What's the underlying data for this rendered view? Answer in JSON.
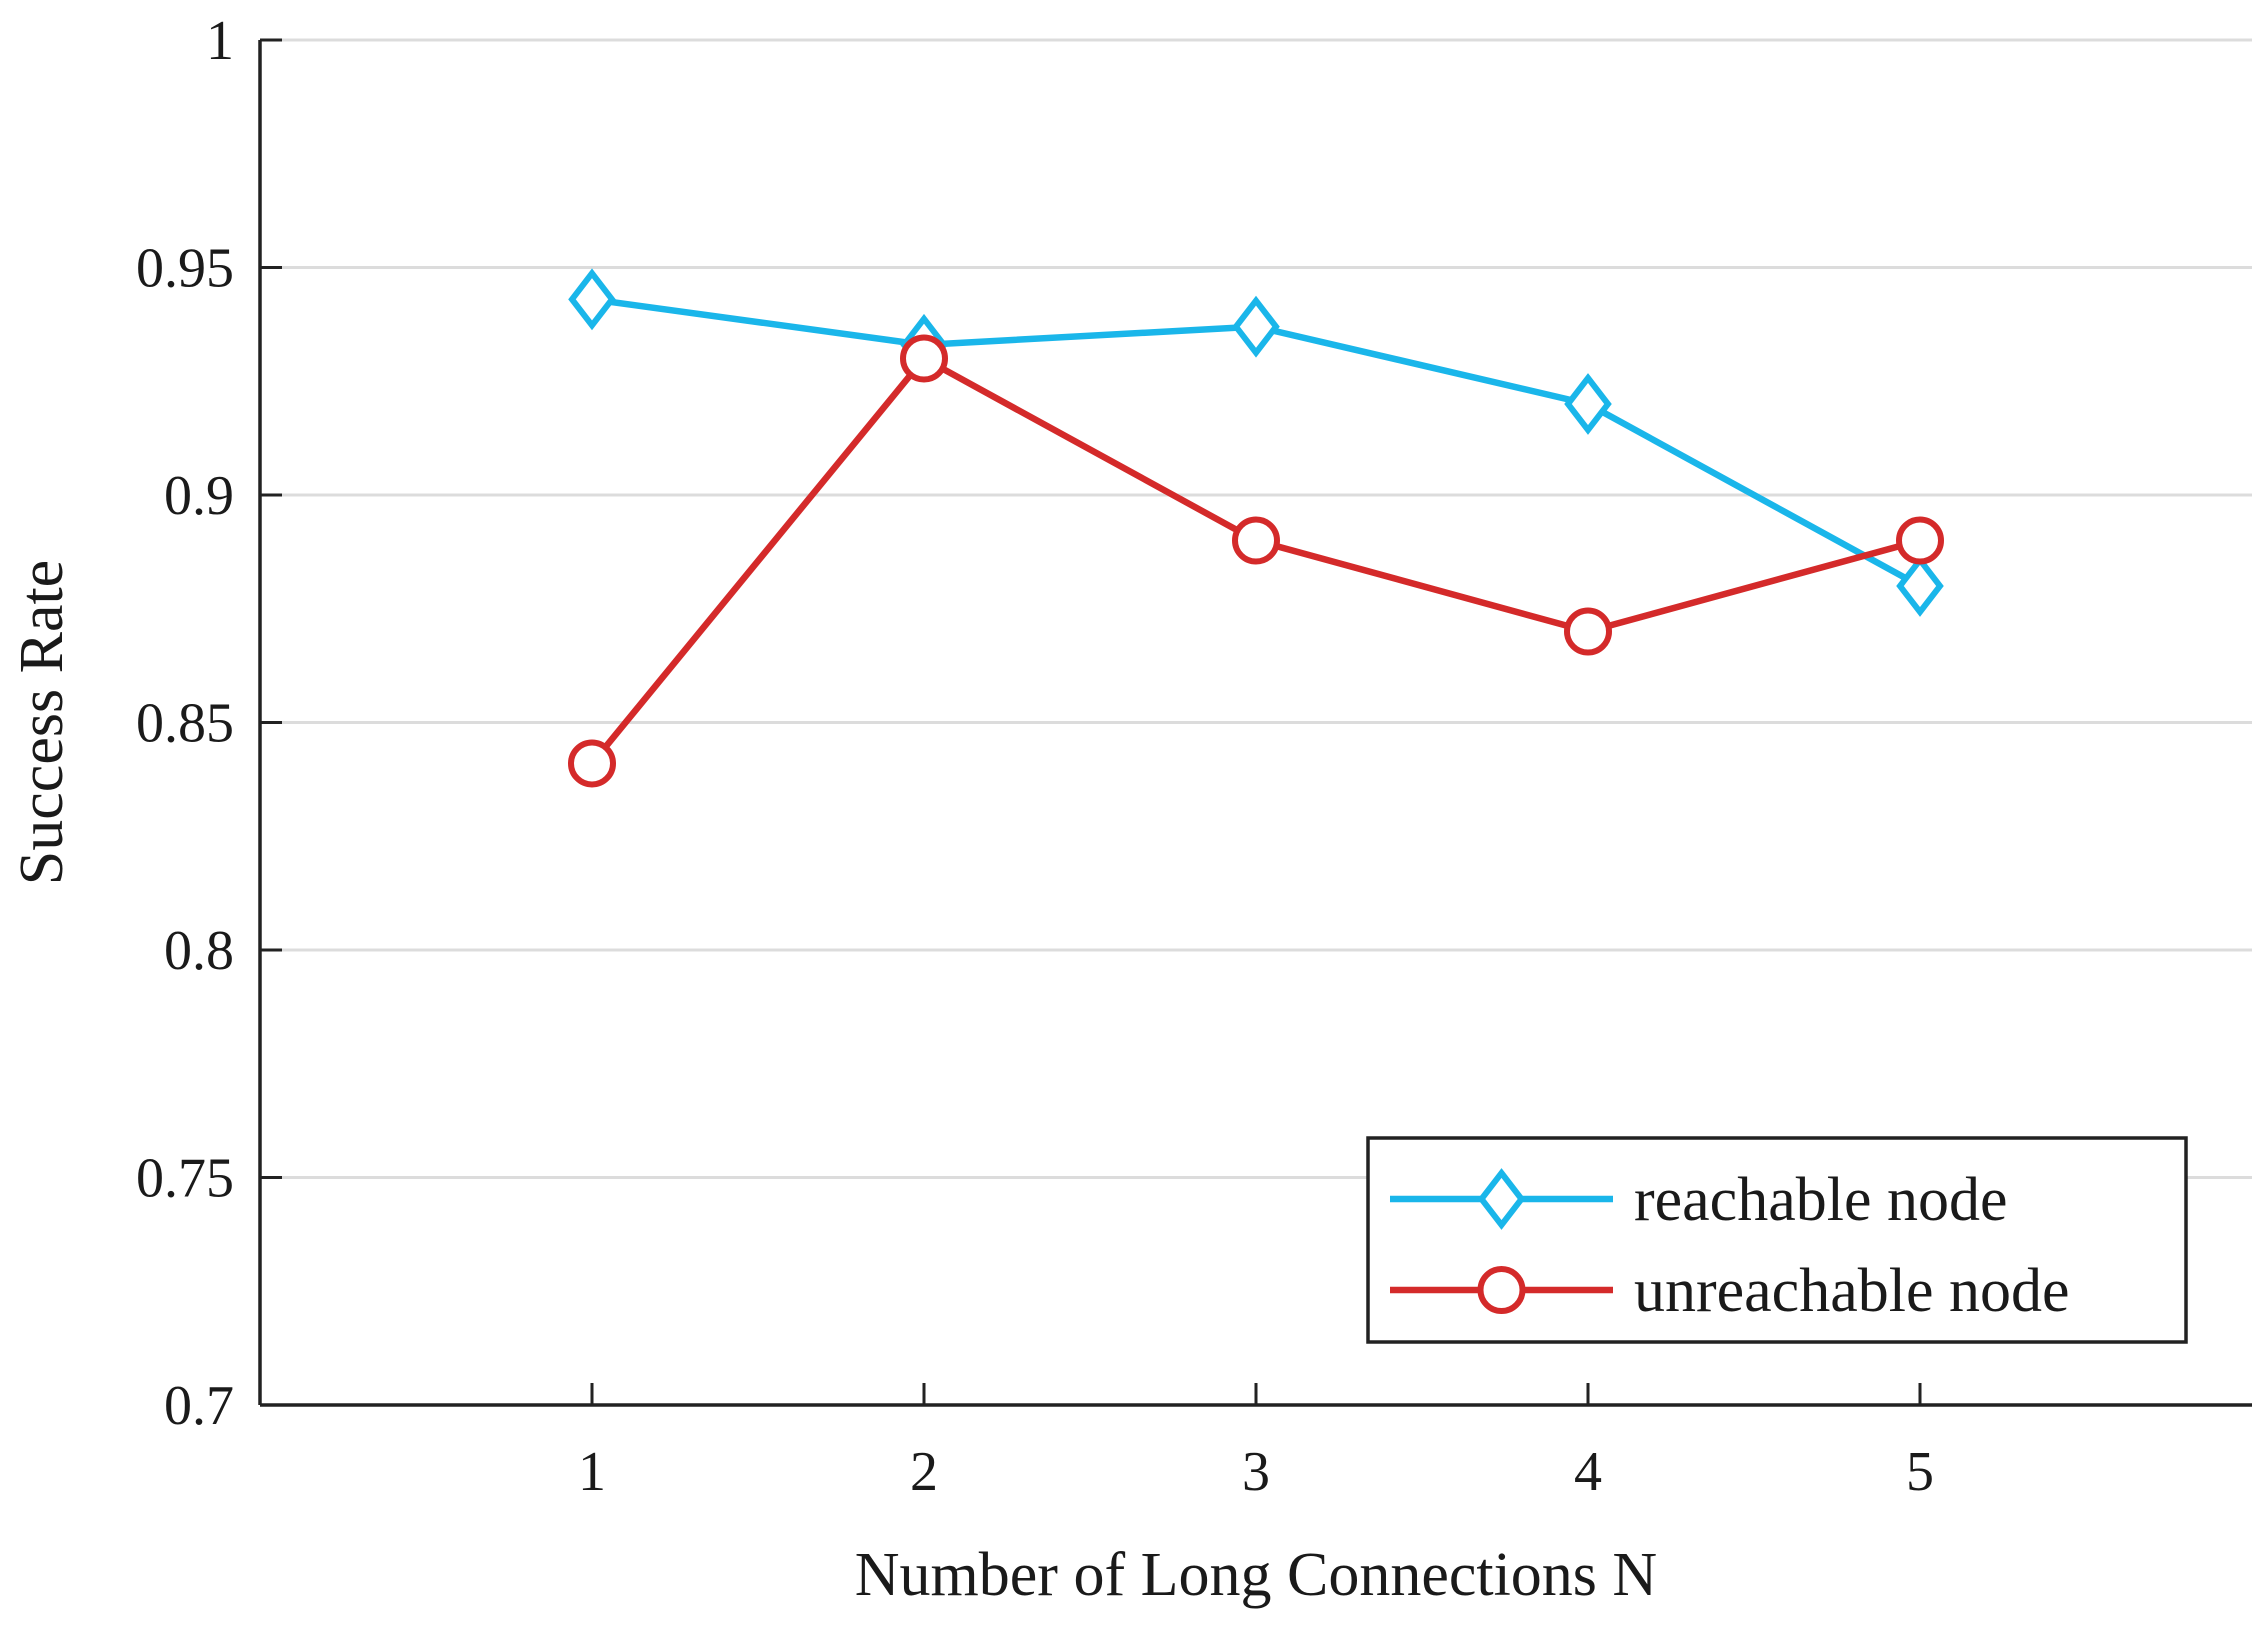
{
  "chart_data": {
    "type": "line",
    "title": "",
    "xlabel": "Number of Long Connections N",
    "ylabel": "Success Rate",
    "x": [
      1,
      2,
      3,
      4,
      5
    ],
    "xlim": [
      0,
      6
    ],
    "ylim": [
      0.7,
      1
    ],
    "x_ticks": [
      "1",
      "2",
      "3",
      "4",
      "5"
    ],
    "y_ticks": [
      "0.7",
      "0.75",
      "0.8",
      "0.85",
      "0.9",
      "0.95",
      "1"
    ],
    "grid": "horizontal",
    "legend_position": "bottom-right",
    "series": [
      {
        "name": "reachable node",
        "values": [
          0.943,
          0.933,
          0.937,
          0.92,
          0.88
        ],
        "color": "#1ab6ea",
        "marker": "diamond"
      },
      {
        "name": "unreachable node",
        "values": [
          0.841,
          0.93,
          0.89,
          0.87,
          0.89
        ],
        "color": "#d42a2a",
        "marker": "circle"
      }
    ]
  }
}
